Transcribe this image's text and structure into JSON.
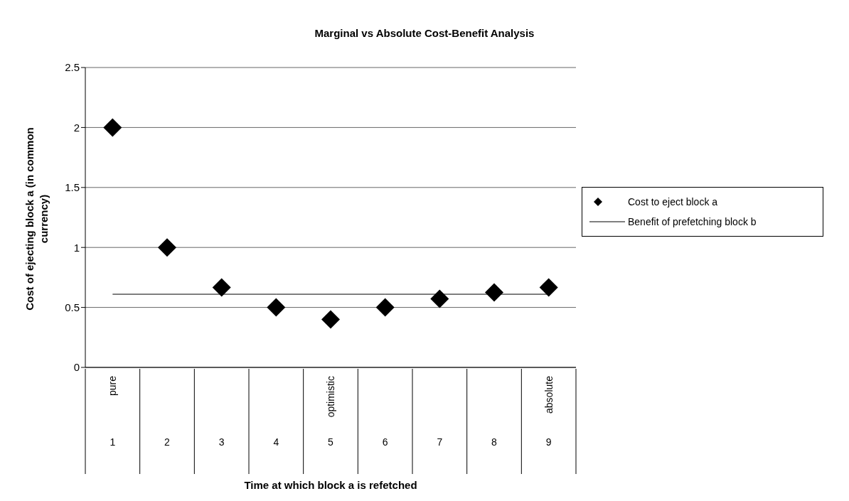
{
  "chart_data": {
    "type": "scatter",
    "title": "Marginal vs Absolute Cost-Benefit Analysis",
    "xlabel": "Time at which block a is refetched",
    "ylabel": "Cost of ejecting block a (in common currency)",
    "categories": [
      "1",
      "2",
      "3",
      "4",
      "5",
      "6",
      "7",
      "8",
      "9"
    ],
    "annotations": [
      "pure",
      "optimistic",
      "absolute"
    ],
    "series": [
      {
        "name": "Cost to eject block a",
        "color": "#000000",
        "marker": "diamond",
        "values": [
          2,
          1,
          0.667,
          0.5,
          0.4,
          0.5,
          0.571,
          0.625,
          0.667
        ]
      },
      {
        "name": "Benefit of prefetching block b",
        "type": "line",
        "color": "#000000",
        "marker": "none",
        "values": [
          0.61,
          0.61,
          0.61,
          0.61,
          0.61,
          0.61,
          0.61,
          0.61,
          0.61
        ]
      }
    ],
    "ylim": [
      0,
      2.5
    ],
    "yticks": [
      0,
      0.5,
      1,
      1.5,
      2,
      2.5
    ],
    "grid": "y",
    "legend": "right"
  }
}
